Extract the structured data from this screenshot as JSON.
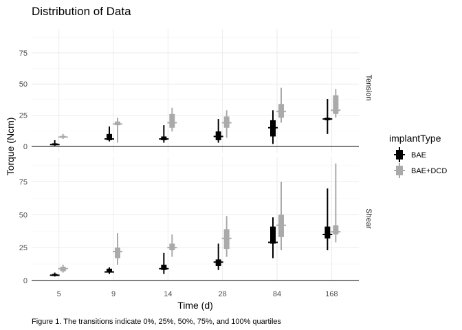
{
  "chart_data": {
    "type": "quantile-range",
    "title": "Distribution of Data",
    "xlabel": "Time (d)",
    "ylabel": "Torque (Ncm)",
    "caption": "Figure 1. The transitions indicate 0%, 25%, 50%, 75%, and 100% quartiles",
    "categories": [
      "5",
      "9",
      "14",
      "28",
      "84",
      "168"
    ],
    "y_ticks": [
      "0",
      "25",
      "50",
      "75"
    ],
    "ylim": [
      0,
      92
    ],
    "grid": true,
    "legend": {
      "title": "implantType",
      "position": "right",
      "entries": [
        {
          "label": "BAE",
          "color": "#000000"
        },
        {
          "label": "BAE+DCD",
          "color": "#aaaaaa"
        }
      ]
    },
    "panels": [
      {
        "label": "Tension",
        "series": [
          {
            "name": "BAE",
            "color": "#000000",
            "quantiles": [
              [
                0.5,
                1,
                1.5,
                2.5,
                5
              ],
              [
                4,
                5,
                6,
                10,
                16
              ],
              [
                3,
                5,
                6,
                8,
                17
              ],
              [
                3,
                5,
                8,
                12,
                22
              ],
              [
                2,
                8,
                15,
                21,
                29
              ],
              [
                10,
                21,
                22,
                23,
                38
              ]
            ]
          },
          {
            "name": "BAE+DCD",
            "color": "#aaaaaa",
            "quantiles": [
              [
                6,
                7,
                7.5,
                8.5,
                10
              ],
              [
                3,
                17,
                18,
                20,
                23
              ],
              [
                12,
                15,
                19,
                26,
                31
              ],
              [
                7,
                15,
                19,
                24,
                29
              ],
              [
                19,
                23,
                28,
                34,
                47
              ],
              [
                23,
                26,
                29,
                41,
                46
              ]
            ]
          }
        ]
      },
      {
        "label": "Shear",
        "series": [
          {
            "name": "BAE",
            "color": "#000000",
            "quantiles": [
              [
                3,
                3.5,
                4,
                5,
                6
              ],
              [
                5,
                6,
                6.5,
                9,
                10
              ],
              [
                5,
                8,
                9,
                12,
                21
              ],
              [
                8,
                11,
                14,
                16,
                28
              ],
              [
                17,
                28,
                29,
                41,
                48
              ],
              [
                23,
                32,
                35,
                41,
                70
              ]
            ]
          },
          {
            "name": "BAE+DCD",
            "color": "#aaaaaa",
            "quantiles": [
              [
                6,
                7,
                9,
                10.5,
                12
              ],
              [
                12,
                17,
                22,
                25,
                36
              ],
              [
                18,
                23,
                25,
                28,
                35
              ],
              [
                18,
                24,
                32,
                39,
                49
              ],
              [
                23,
                33,
                42,
                50,
                75
              ],
              [
                29,
                35,
                37,
                42,
                89
              ]
            ]
          }
        ]
      }
    ]
  }
}
